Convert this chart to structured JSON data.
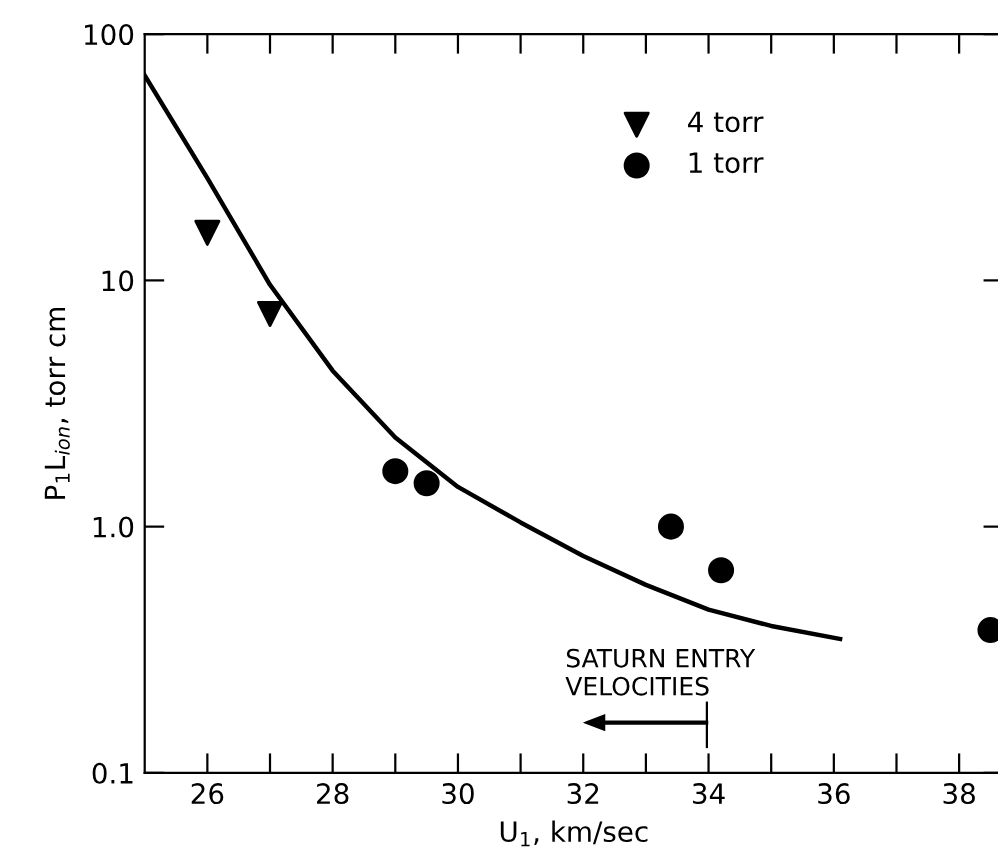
{
  "chart_data": {
    "type": "scatter",
    "xlabel": "U$_{1}$, km/sec",
    "ylabel": "P$_{1}$L$_{ion}$, torr cm",
    "log": "y",
    "legend": "top right",
    "grid": false,
    "xlim": [
      25,
      38.7
    ],
    "ylim": [
      0.1,
      100
    ],
    "xticks": [
      26,
      {
        "value": 27,
        "label": null
      },
      28,
      {
        "value": 29,
        "label": null
      },
      30,
      {
        "value": 31,
        "label": null
      },
      32,
      {
        "value": 33,
        "label": null
      },
      34,
      {
        "value": 35,
        "label": null
      },
      36,
      {
        "value": 37,
        "label": null
      },
      38
    ],
    "yticks": [
      {
        "value": 0.1,
        "label": "0.1"
      },
      {
        "value": 1,
        "label": "1.0"
      },
      {
        "value": 10,
        "label": "10"
      },
      {
        "value": 100,
        "label": "100"
      }
    ],
    "series": [
      {
        "type": "line",
        "color": "#000000",
        "marker": "none",
        "line_style": "solid",
        "x": [
          25,
          26,
          27,
          28,
          29,
          30,
          31,
          32,
          33,
          34,
          35,
          36.1
        ],
        "values": [
          68,
          26,
          9.6,
          4.3,
          2.3,
          1.45,
          1.04,
          0.76,
          0.58,
          0.46,
          0.395,
          0.35
        ]
      },
      {
        "name": "4 torr",
        "color": "#000000",
        "marker": "triangle",
        "x": [
          26,
          27
        ],
        "values": [
          15.6,
          7.3
        ]
      },
      {
        "name": "1 torr",
        "color": "#000000",
        "marker": "circle",
        "x": [
          29.0,
          29.5,
          33.4,
          34.2,
          38.5
        ],
        "values": [
          1.68,
          1.5,
          1.0,
          0.665,
          0.38
        ]
      }
    ],
    "annotations": [
      "SATURN ENTRY\nVELOCITIES"
    ]
  }
}
